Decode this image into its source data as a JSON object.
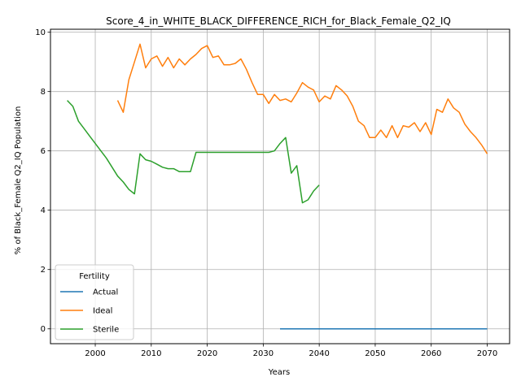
{
  "chart_data": {
    "type": "line",
    "title": "Score_4_in_WHITE_BLACK_DIFFERENCE_RICH_for_Black_Female_Q2_IQ",
    "xlabel": "Years",
    "ylabel": "% of Black_Female Q2_IQ Population",
    "xlim": [
      1992,
      2074
    ],
    "ylim": [
      -0.5,
      10.1
    ],
    "xticks": [
      2000,
      2010,
      2020,
      2030,
      2040,
      2050,
      2060,
      2070
    ],
    "yticks": [
      0,
      2,
      4,
      6,
      8,
      10
    ],
    "grid": true,
    "legend": {
      "title": "Fertility",
      "placement": "lower-left"
    },
    "series": [
      {
        "name": "Actual",
        "color": "#1f77b4",
        "x": [
          2033,
          2040,
          2050,
          2060,
          2070
        ],
        "y": [
          0,
          0,
          0,
          0,
          0
        ]
      },
      {
        "name": "Ideal",
        "color": "#ff7f0e",
        "x": [
          2004,
          2005,
          2006,
          2007,
          2008,
          2009,
          2010,
          2011,
          2012,
          2013,
          2014,
          2015,
          2016,
          2017,
          2018,
          2019,
          2020,
          2021,
          2022,
          2023,
          2024,
          2025,
          2026,
          2027,
          2028,
          2029,
          2030,
          2031,
          2032,
          2033,
          2034,
          2035,
          2036,
          2037,
          2038,
          2039,
          2040,
          2041,
          2042,
          2043,
          2044,
          2045,
          2046,
          2047,
          2048,
          2049,
          2050,
          2051,
          2052,
          2053,
          2054,
          2055,
          2056,
          2057,
          2058,
          2059,
          2060,
          2061,
          2062,
          2063,
          2064,
          2065,
          2066,
          2067,
          2068,
          2069,
          2070
        ],
        "y": [
          7.7,
          7.3,
          8.4,
          9.0,
          9.6,
          8.8,
          9.1,
          9.2,
          8.85,
          9.15,
          8.8,
          9.1,
          8.9,
          9.1,
          9.25,
          9.45,
          9.55,
          9.15,
          9.2,
          8.9,
          8.9,
          8.95,
          9.1,
          8.75,
          8.3,
          7.9,
          7.9,
          7.6,
          7.9,
          7.7,
          7.75,
          7.65,
          7.95,
          8.3,
          8.15,
          8.05,
          7.65,
          7.85,
          7.75,
          8.2,
          8.05,
          7.85,
          7.5,
          7.0,
          6.85,
          6.45,
          6.45,
          6.7,
          6.45,
          6.85,
          6.45,
          6.85,
          6.8,
          6.95,
          6.65,
          6.95,
          6.55,
          7.4,
          7.3,
          7.75,
          7.45,
          7.3,
          6.9,
          6.65,
          6.45,
          6.2,
          5.9
        ]
      },
      {
        "name": "Sterile",
        "color": "#2ca02c",
        "x": [
          1995,
          1996,
          1997,
          1998,
          1999,
          2000,
          2001,
          2002,
          2003,
          2004,
          2005,
          2006,
          2007,
          2008,
          2009,
          2010,
          2011,
          2012,
          2013,
          2014,
          2015,
          2016,
          2017,
          2018,
          2019,
          2020,
          2021,
          2022,
          2023,
          2024,
          2025,
          2026,
          2027,
          2028,
          2029,
          2030,
          2031,
          2032,
          2033,
          2034,
          2035,
          2036,
          2037,
          2038,
          2039,
          2040
        ],
        "y": [
          7.7,
          7.5,
          7.0,
          6.75,
          6.5,
          6.25,
          6.0,
          5.75,
          5.45,
          5.15,
          4.95,
          4.7,
          4.55,
          5.9,
          5.7,
          5.65,
          5.55,
          5.45,
          5.4,
          5.4,
          5.3,
          5.3,
          5.3,
          5.95,
          5.95,
          5.95,
          5.95,
          5.95,
          5.95,
          5.95,
          5.95,
          5.95,
          5.95,
          5.95,
          5.95,
          5.95,
          5.95,
          6.0,
          6.25,
          6.45,
          5.25,
          5.5,
          4.25,
          4.35,
          4.65,
          4.85
        ]
      }
    ]
  }
}
